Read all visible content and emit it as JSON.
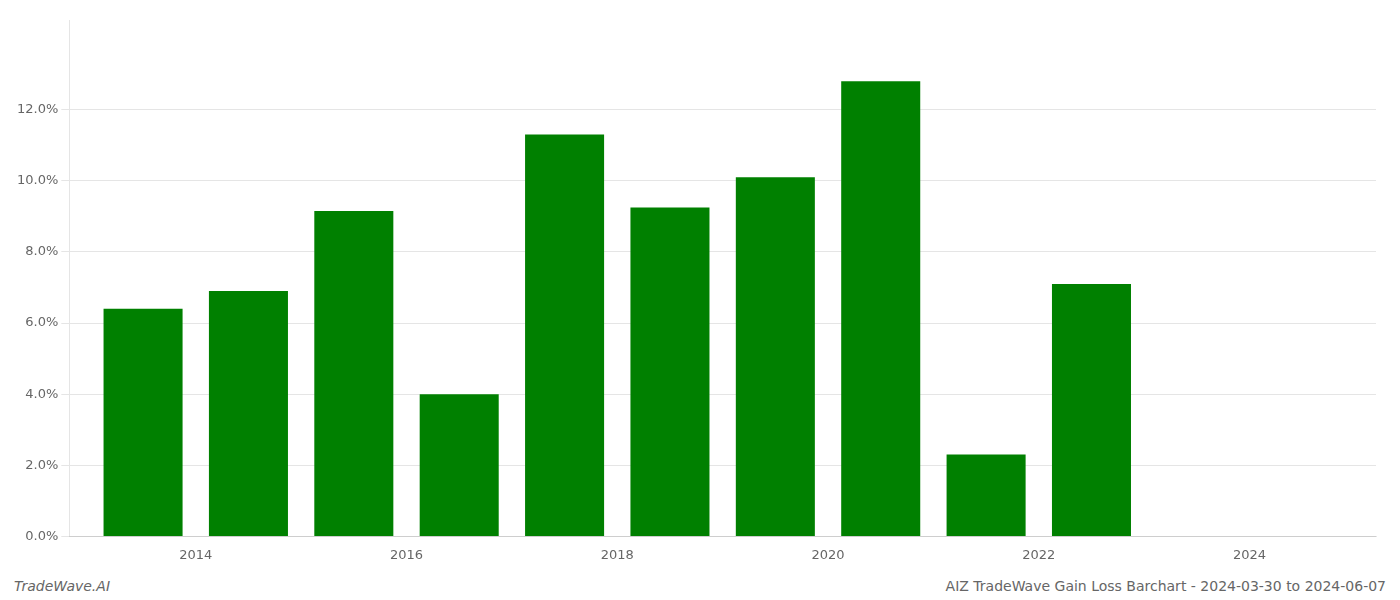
{
  "chart_data": {
    "type": "bar",
    "title": "AIZ TradeWave Gain Loss Barchart - 2024-03-30 to 2024-06-07",
    "annotations": [
      {
        "text": "TradeWave.AI"
      }
    ],
    "x": [
      2013.5,
      2014.5,
      2015.5,
      2016.5,
      2017.5,
      2018.5,
      2019.5,
      2020.5,
      2021.5,
      2022.5,
      2023.5
    ],
    "values": [
      0.064,
      0.069,
      0.0915,
      0.04,
      0.113,
      0.0925,
      0.101,
      0.128,
      0.023,
      0.071,
      0.0
    ],
    "color": "#008000",
    "xlim": [
      2012.8,
      2025.2
    ],
    "xticks": [
      2014,
      2016,
      2018,
      2020,
      2022,
      2024
    ],
    "ylim": [
      0,
      0.145
    ],
    "yticks": [
      {
        "value": 0.0,
        "label": "0.0%"
      },
      {
        "value": 0.02,
        "label": "2.0%"
      },
      {
        "value": 0.04,
        "label": "4.0%"
      },
      {
        "value": 0.06,
        "label": "6.0%"
      },
      {
        "value": 0.08,
        "label": "8.0%"
      },
      {
        "value": 0.1,
        "label": "10.0%"
      },
      {
        "value": 0.12,
        "label": "12.0%"
      }
    ],
    "grid": true
  }
}
